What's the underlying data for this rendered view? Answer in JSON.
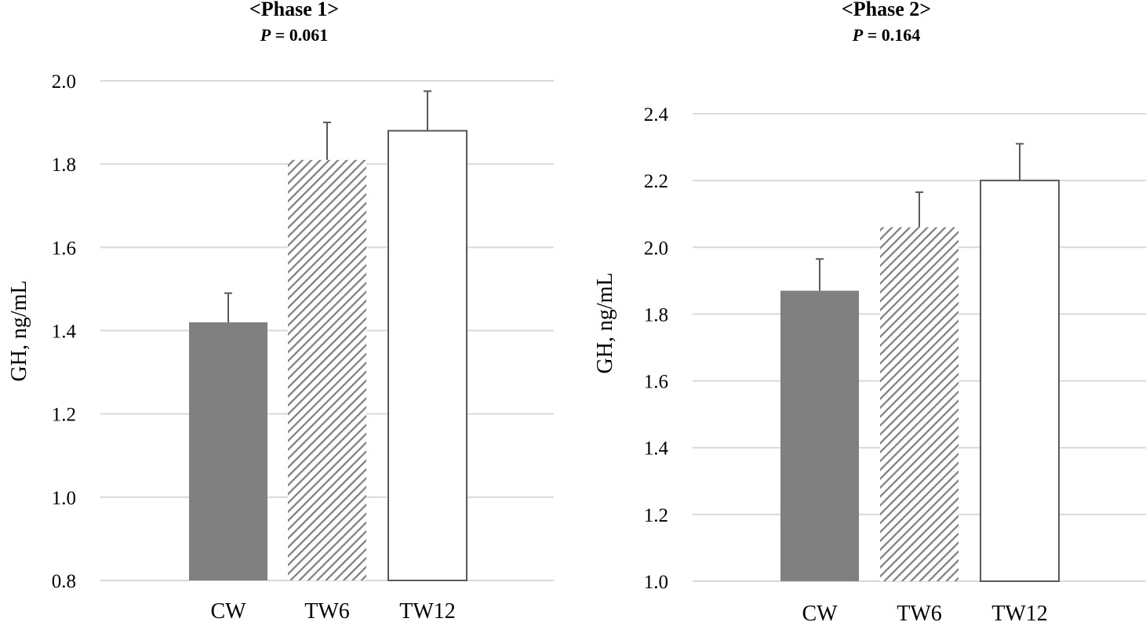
{
  "chart_data": [
    {
      "type": "bar",
      "title": "<Phase 1>",
      "p_label": "P",
      "p_value": " = 0.061",
      "ylabel": "GH,  ng/mL",
      "xlabel": "",
      "ylim": [
        0.8,
        2.0
      ],
      "yticks": [
        0.8,
        1.0,
        1.2,
        1.4,
        1.6,
        1.8,
        2.0
      ],
      "ytick_labels": [
        "0.8",
        "1.0",
        "1.2",
        "1.4",
        "1.6",
        "1.8",
        "2.0"
      ],
      "categories": [
        "CW",
        "TW6",
        "TW12"
      ],
      "values": [
        1.42,
        1.81,
        1.88
      ],
      "errors": [
        0.07,
        0.09,
        0.095
      ],
      "grid": true
    },
    {
      "type": "bar",
      "title": "<Phase 2>",
      "p_label": "P",
      "p_value": " = 0.164",
      "ylabel": "GH,  ng/mL",
      "xlabel": "",
      "ylim": [
        1.0,
        2.4
      ],
      "yticks": [
        1.0,
        1.2,
        1.4,
        1.6,
        1.8,
        2.0,
        2.2,
        2.4
      ],
      "ytick_labels": [
        "1.0",
        "1.2",
        "1.4",
        "1.6",
        "1.8",
        "2.0",
        "2.2",
        "2.4"
      ],
      "categories": [
        "CW",
        "TW6",
        "TW12"
      ],
      "values": [
        1.87,
        2.06,
        2.2
      ],
      "errors": [
        0.095,
        0.105,
        0.11
      ],
      "grid": true
    }
  ],
  "colors": {
    "solid_fill": "#808080",
    "hatch_stroke": "#808080",
    "outline": "#595959",
    "gridline": "#d9d9d9"
  },
  "bar_styles": [
    "solid",
    "hatched",
    "outline"
  ]
}
